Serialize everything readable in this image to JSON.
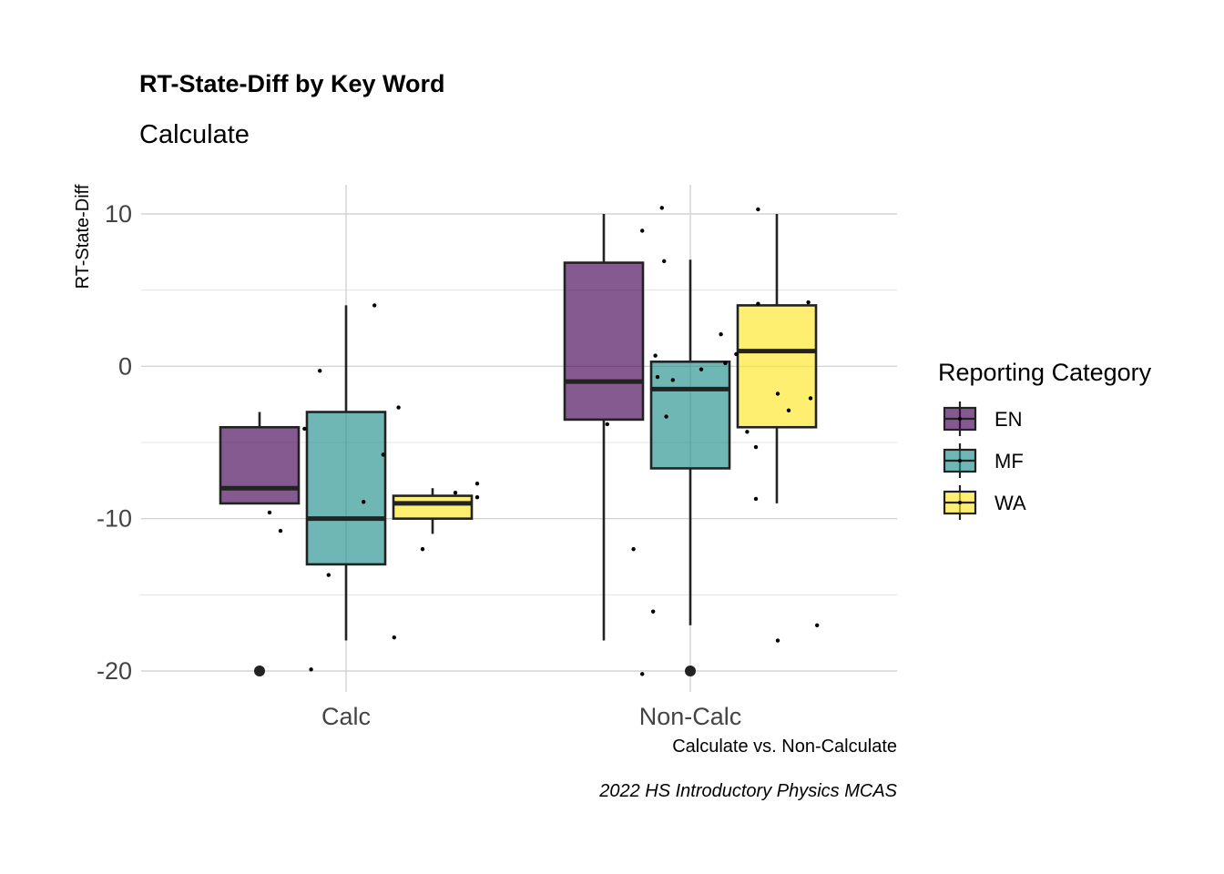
{
  "chart_data": {
    "type": "boxplot",
    "title": "RT-State-Diff by Key Word",
    "subtitle": "Calculate",
    "xlabel": "Calculate vs. Non-Calculate",
    "ylabel": "RT-State-Diff",
    "caption": "2022 HS Introductory Physics MCAS",
    "ylim": [
      -22,
      12
    ],
    "yticks": [
      10,
      0,
      -10,
      -20
    ],
    "grid": true,
    "categories": [
      "Calc",
      "Non-Calc"
    ],
    "legend": {
      "title": "Reporting Category",
      "position": "right",
      "items": [
        "EN",
        "MF",
        "WA"
      ]
    },
    "series": [
      {
        "name": "EN",
        "color": "#440154",
        "boxes": [
          {
            "category": "Calc",
            "min": -9,
            "q1": -9,
            "median": -8,
            "q3": -4,
            "max": -3,
            "outliers": [
              -20
            ]
          },
          {
            "category": "Non-Calc",
            "min": -18,
            "q1": -3.5,
            "median": -1,
            "q3": 6.8,
            "max": 10,
            "outliers": []
          }
        ],
        "points": [
          {
            "category": "Calc",
            "offset": -0.35,
            "y": -9.6
          },
          {
            "category": "Calc",
            "offset": -0.3,
            "y": -10.8
          },
          {
            "category": "Calc",
            "offset": -0.12,
            "y": -0.3
          },
          {
            "category": "Calc",
            "offset": -0.08,
            "y": -13.7
          },
          {
            "category": "Non-Calc",
            "offset": -0.38,
            "y": -3.8
          },
          {
            "category": "Non-Calc",
            "offset": -0.26,
            "y": -12
          },
          {
            "category": "Non-Calc",
            "offset": -0.13,
            "y": 10.4
          },
          {
            "category": "Non-Calc",
            "offset": -0.16,
            "y": 0.7
          },
          {
            "category": "Non-Calc",
            "offset": -0.15,
            "y": -0.7
          }
        ]
      },
      {
        "name": "MF",
        "color": "#21908C",
        "boxes": [
          {
            "category": "Calc",
            "min": -18,
            "q1": -13,
            "median": -10,
            "q3": -3,
            "max": 4,
            "outliers": []
          },
          {
            "category": "Non-Calc",
            "min": -17,
            "q1": -6.7,
            "median": -1.5,
            "q3": 0.3,
            "max": 7,
            "outliers": [
              -20
            ]
          }
        ],
        "points": [
          {
            "category": "Calc",
            "offset": -0.19,
            "y": -4.1
          },
          {
            "category": "Calc",
            "offset": -0.16,
            "y": -19.9
          },
          {
            "category": "Calc",
            "offset": 0.08,
            "y": -8.9
          },
          {
            "category": "Calc",
            "offset": 0.13,
            "y": 4
          },
          {
            "category": "Calc",
            "offset": 0.17,
            "y": -5.8
          },
          {
            "category": "Calc",
            "offset": 0.22,
            "y": -17.8
          },
          {
            "category": "Calc",
            "offset": 0.24,
            "y": -2.7
          },
          {
            "category": "Non-Calc",
            "offset": -0.22,
            "y": -20.2
          },
          {
            "category": "Non-Calc",
            "offset": -0.22,
            "y": 8.9
          },
          {
            "category": "Non-Calc",
            "offset": -0.17,
            "y": -16.1
          },
          {
            "category": "Non-Calc",
            "offset": -0.12,
            "y": 6.9
          },
          {
            "category": "Non-Calc",
            "offset": -0.11,
            "y": -3.3
          },
          {
            "category": "Non-Calc",
            "offset": -0.08,
            "y": -0.9
          },
          {
            "category": "Non-Calc",
            "offset": 0.05,
            "y": -0.2
          },
          {
            "category": "Non-Calc",
            "offset": 0.14,
            "y": 2.1
          },
          {
            "category": "Non-Calc",
            "offset": 0.16,
            "y": 0.2
          }
        ]
      },
      {
        "name": "WA",
        "color": "#FDE725",
        "boxes": [
          {
            "category": "Calc",
            "min": -11,
            "q1": -10,
            "median": -9,
            "q3": -8.5,
            "max": -8,
            "outliers": []
          },
          {
            "category": "Non-Calc",
            "min": -9,
            "q1": -4,
            "median": 1,
            "q3": 4,
            "max": 10,
            "outliers": []
          }
        ],
        "points": [
          {
            "category": "Calc",
            "offset": 0.35,
            "y": -12
          },
          {
            "category": "Calc",
            "offset": 0.5,
            "y": -8.3
          },
          {
            "category": "Calc",
            "offset": 0.6,
            "y": -8.6
          },
          {
            "category": "Calc",
            "offset": 0.6,
            "y": -7.7
          },
          {
            "category": "Non-Calc",
            "offset": 0.21,
            "y": 0.8
          },
          {
            "category": "Non-Calc",
            "offset": 0.26,
            "y": -4.3
          },
          {
            "category": "Non-Calc",
            "offset": 0.3,
            "y": -5.3
          },
          {
            "category": "Non-Calc",
            "offset": 0.3,
            "y": -8.7
          },
          {
            "category": "Non-Calc",
            "offset": 0.31,
            "y": 10.3
          },
          {
            "category": "Non-Calc",
            "offset": 0.31,
            "y": 4.1
          },
          {
            "category": "Non-Calc",
            "offset": 0.4,
            "y": -1.8
          },
          {
            "category": "Non-Calc",
            "offset": 0.45,
            "y": -2.9
          },
          {
            "category": "Non-Calc",
            "offset": 0.54,
            "y": 4.2
          },
          {
            "category": "Non-Calc",
            "offset": 0.55,
            "y": -2.1
          },
          {
            "category": "Non-Calc",
            "offset": 0.4,
            "y": -18
          },
          {
            "category": "Non-Calc",
            "offset": 0.58,
            "y": -17
          }
        ]
      }
    ]
  }
}
